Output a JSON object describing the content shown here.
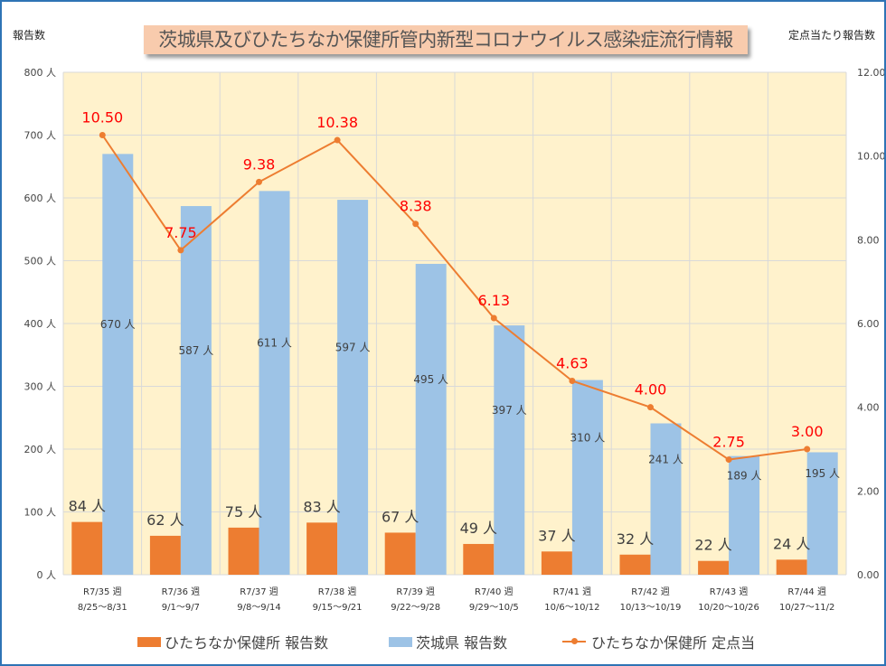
{
  "chart_data": {
    "type": "bar+line",
    "title": "茨城県及びひたちなか保健所管内新型コロナウイルス感染症流行情報",
    "ylabel_left": "報告数",
    "ylabel_right": "定点当たり報告数",
    "ylim_left": [
      0,
      800
    ],
    "ylim_right": [
      0,
      12
    ],
    "left_ticks": [
      "0 人",
      "100 人",
      "200 人",
      "300 人",
      "400 人",
      "500 人",
      "600 人",
      "700 人",
      "800 人"
    ],
    "right_ticks": [
      "0.00",
      "2.00",
      "4.00",
      "6.00",
      "8.00",
      "10.00",
      "12.00"
    ],
    "categories": [
      [
        "R7/35 週",
        "8/25～8/31"
      ],
      [
        "R7/36 週",
        "9/1～9/7"
      ],
      [
        "R7/37 週",
        "9/8～9/14"
      ],
      [
        "R7/38 週",
        "9/15～9/21"
      ],
      [
        "R7/39 週",
        "9/22～9/28"
      ],
      [
        "R7/40 週",
        "9/29～10/5"
      ],
      [
        "R7/41 週",
        "10/6～10/12"
      ],
      [
        "R7/42 週",
        "10/13～10/19"
      ],
      [
        "R7/43 週",
        "10/20～10/26"
      ],
      [
        "R7/44 週",
        "10/27～11/2"
      ]
    ],
    "series": [
      {
        "name": "ひたちなか保健所 報告数",
        "type": "bar",
        "axis": "left",
        "color": "#ed7d31",
        "values": [
          84,
          62,
          75,
          83,
          67,
          49,
          37,
          32,
          22,
          24
        ],
        "unit": " 人"
      },
      {
        "name": "茨城県 報告数",
        "type": "bar",
        "axis": "left",
        "color": "#9dc3e6",
        "values": [
          670,
          587,
          611,
          597,
          495,
          397,
          310,
          241,
          189,
          195
        ],
        "unit": " 人"
      },
      {
        "name": "ひたちなか保健所 定点当",
        "type": "line",
        "axis": "right",
        "color": "#ed7d31",
        "values": [
          10.5,
          7.75,
          9.38,
          10.38,
          8.38,
          6.13,
          4.63,
          4.0,
          2.75,
          3.0
        ]
      }
    ],
    "plot_background": "#fff2cc",
    "grid": true,
    "legend_position": "bottom"
  }
}
